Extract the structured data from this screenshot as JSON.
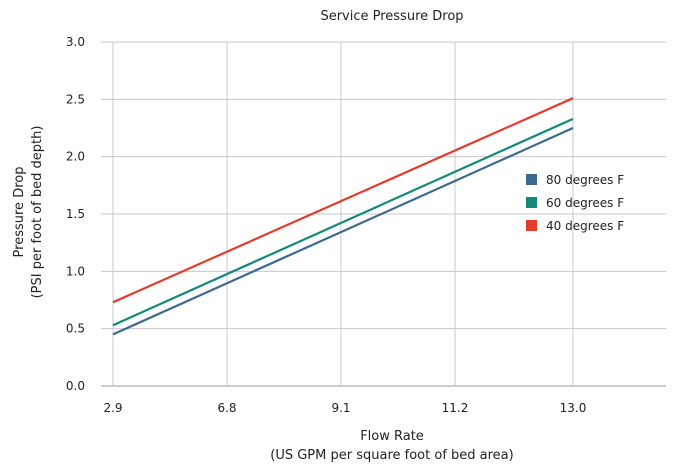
{
  "chart_data": {
    "type": "line",
    "title": "Service Pressure Drop",
    "xlabel": "Flow Rate",
    "xlabel_sub": "(US GPM per square foot of bed area)",
    "ylabel": "Pressure Drop",
    "ylabel_sub": "(PSI per foot of bed depth)",
    "x_ticks": [
      "2.9",
      "6.8",
      "9.1",
      "11.2",
      "13.0"
    ],
    "y_ticks": [
      "0.0",
      "0.5",
      "1.0",
      "1.5",
      "2.0",
      "2.5",
      "3.0"
    ],
    "ylim": [
      0,
      3.0
    ],
    "grid": true,
    "legend_position": "right",
    "series": [
      {
        "name": "80 degrees F",
        "color": "#3e6a8f",
        "x": [
          "2.9",
          "13.0"
        ],
        "values": [
          0.45,
          2.25
        ]
      },
      {
        "name": "60 degrees F",
        "color": "#138a77",
        "x": [
          "2.9",
          "13.0"
        ],
        "values": [
          0.53,
          2.33
        ]
      },
      {
        "name": "40 degrees F",
        "color": "#e53a2e",
        "x": [
          "2.9",
          "13.0"
        ],
        "values": [
          0.73,
          2.51
        ]
      }
    ]
  }
}
